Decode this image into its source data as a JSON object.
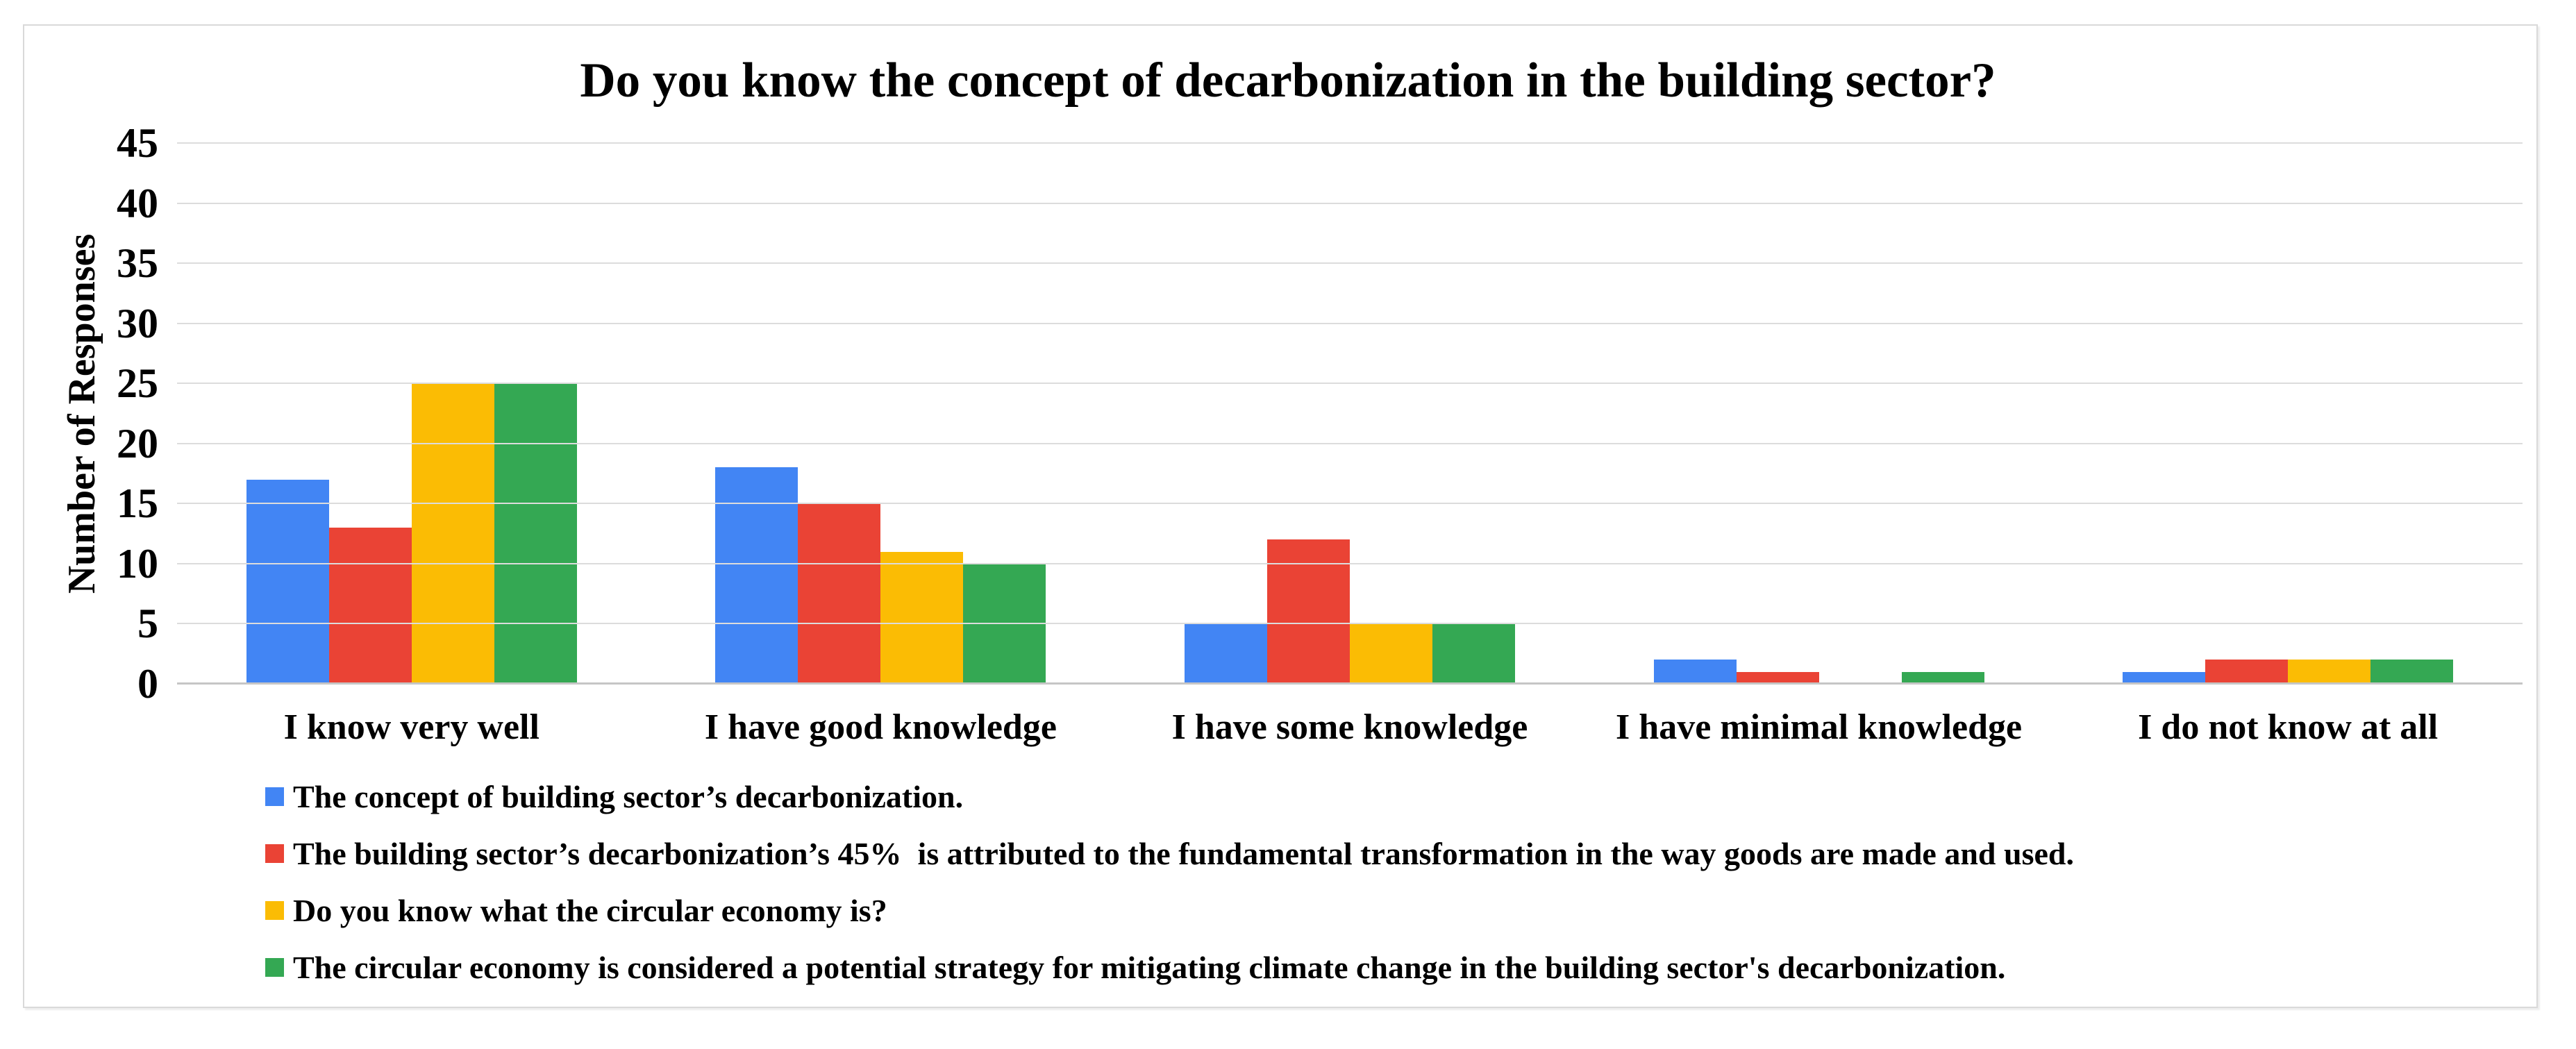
{
  "chart_data": {
    "type": "bar",
    "title": "Do you know the concept of decarbonization in the building sector?",
    "ylabel": "Number of Responses",
    "xlabel": "",
    "ylim": [
      0,
      45
    ],
    "y_ticks": [
      0,
      5,
      10,
      15,
      20,
      25,
      30,
      35,
      40,
      45
    ],
    "grid": true,
    "legend_position": "bottom-left",
    "categories": [
      "I know very well",
      "I have good knowledge",
      "I have some knowledge",
      "I have minimal knowledge",
      "I do not know at all"
    ],
    "series": [
      {
        "name": "The concept of building sector’s decarbonization.",
        "color": "#4285F4",
        "values": [
          17,
          18,
          5,
          2,
          1
        ]
      },
      {
        "name": "The building sector’s decarbonization’s 45%  is attributed to the fundamental transformation in the way goods are made and used.",
        "color": "#EA4335",
        "values": [
          13,
          15,
          12,
          1,
          2
        ]
      },
      {
        "name": "Do you know what the circular economy is?",
        "color": "#FBBC04",
        "values": [
          25,
          11,
          5,
          0,
          2
        ]
      },
      {
        "name": "The circular economy is considered a potential strategy for mitigating climate change in the building sector's decarbonization.",
        "color": "#34A853",
        "values": [
          25,
          10,
          5,
          1,
          2
        ]
      }
    ],
    "style": {
      "gridline_color": "#dcdcdc",
      "axis_line_color": "#c6c6c6",
      "panel_border_color": "#d9d9d9",
      "text_color": "#000000",
      "background": "#ffffff"
    }
  }
}
